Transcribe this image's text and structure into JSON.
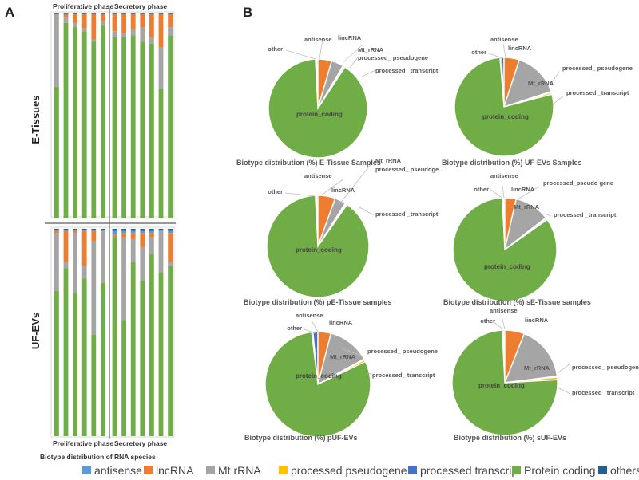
{
  "panel_a": {
    "letter": "A"
  },
  "panel_b": {
    "letter": "B"
  },
  "chart_data": [
    {
      "type": "bar",
      "stacked": true,
      "title": "Biotype distribution of RNA species",
      "row_labels": [
        "E-Tissues",
        "UF-EVs"
      ],
      "phase_labels": {
        "top": [
          "Proliferative phase",
          "Secretory phase"
        ],
        "bottom": [
          "Proliferative phase",
          "Secretory phase"
        ]
      },
      "ylim": [
        0,
        100
      ],
      "series_order": [
        "Protein coding",
        "Mt rRNA",
        "lncRNA",
        "processed pseudogene",
        "processed transcrip",
        "antisense",
        "others"
      ],
      "panels": [
        {
          "name": "E-Tissues",
          "bars": [
            {
              "phase": "Proliferative phase",
              "values": [
                64,
                35,
                0.5,
                0,
                0,
                0.2,
                0.3
              ]
            },
            {
              "phase": "Proliferative phase",
              "values": [
                95,
                3,
                1.5,
                0,
                0,
                0.2,
                0.3
              ]
            },
            {
              "phase": "Proliferative phase",
              "values": [
                93,
                2,
                4.5,
                0,
                0,
                0.2,
                0.3
              ]
            },
            {
              "phase": "Proliferative phase",
              "values": [
                91,
                1.5,
                7,
                0,
                0,
                0.2,
                0.3
              ]
            },
            {
              "phase": "Proliferative phase",
              "values": [
                86,
                1,
                12.5,
                0,
                0,
                0.2,
                0.3
              ]
            },
            {
              "phase": "Proliferative phase",
              "values": [
                94,
                2,
                3.5,
                0,
                0,
                0.2,
                0.3
              ]
            },
            {
              "phase": "Secretory phase",
              "values": [
                88,
                3,
                8.5,
                0,
                0,
                0.2,
                0.3
              ]
            },
            {
              "phase": "Secretory phase",
              "values": [
                88,
                2,
                9.5,
                0,
                0,
                0.2,
                0.3
              ]
            },
            {
              "phase": "Secretory phase",
              "values": [
                89,
                3,
                7.5,
                0,
                0,
                0.2,
                0.3
              ]
            },
            {
              "phase": "Secretory phase",
              "values": [
                86,
                7,
                6.5,
                0,
                0,
                0.2,
                0.3
              ]
            },
            {
              "phase": "Secretory phase",
              "values": [
                85,
                3,
                11.5,
                0,
                0,
                0.2,
                0.3
              ]
            },
            {
              "phase": "Secretory phase",
              "values": [
                63,
                20,
                16.5,
                0,
                0,
                0.2,
                0.3
              ]
            },
            {
              "phase": "Secretory phase",
              "values": [
                89,
                4,
                6.5,
                0,
                0,
                0.2,
                0.3
              ]
            }
          ]
        },
        {
          "name": "UF-EVs",
          "bars": [
            {
              "phase": "Proliferative phase",
              "values": [
                70,
                28,
                1,
                0,
                0,
                0.5,
                0.5
              ]
            },
            {
              "phase": "Proliferative phase",
              "values": [
                81,
                3,
                15,
                0,
                0,
                0.5,
                0.5
              ]
            },
            {
              "phase": "Proliferative phase",
              "values": [
                69,
                29,
                1,
                0,
                0,
                0.5,
                0.5
              ]
            },
            {
              "phase": "Proliferative phase",
              "values": [
                76,
                6,
                17,
                0,
                0,
                0.5,
                0.5
              ]
            },
            {
              "phase": "Proliferative phase",
              "values": [
                49,
                45,
                5,
                0,
                0,
                0.5,
                0.5
              ]
            },
            {
              "phase": "Proliferative phase",
              "values": [
                74,
                25,
                0,
                0,
                0,
                0.5,
                0.5
              ]
            },
            {
              "phase": "Secretory phase",
              "values": [
                96,
                0,
                1,
                0,
                0,
                2,
                1
              ]
            },
            {
              "phase": "Secretory phase",
              "values": [
                56,
                40,
                2,
                0,
                0,
                1,
                1
              ]
            },
            {
              "phase": "Secretory phase",
              "values": [
                84,
                11,
                3,
                0,
                0,
                1,
                1
              ]
            },
            {
              "phase": "Secretory phase",
              "values": [
                75,
                16,
                7,
                0,
                0,
                1,
                1
              ]
            },
            {
              "phase": "Secretory phase",
              "values": [
                88,
                8,
                2,
                0,
                0,
                1,
                1
              ]
            },
            {
              "phase": "Secretory phase",
              "values": [
                79,
                20,
                0,
                0,
                0,
                0.5,
                0.5
              ]
            },
            {
              "phase": "Secretory phase",
              "values": [
                82,
                2,
                14,
                0,
                0,
                1,
                1
              ]
            }
          ]
        }
      ]
    },
    {
      "type": "pie",
      "title": "Biotype distribution (%)  E-Tissue Samples",
      "slices": [
        {
          "label": "other",
          "value": 0.4
        },
        {
          "label": "antisense",
          "value": 0.4
        },
        {
          "label": "lincRNA",
          "value": 4.5
        },
        {
          "label": "Mt_rRNA",
          "value": 4
        },
        {
          "label": "processed_ pseudogene",
          "value": 0.3
        },
        {
          "label": "processed_ transcript",
          "value": 0.4
        },
        {
          "label": "protein_coding",
          "value": 90
        }
      ]
    },
    {
      "type": "pie",
      "title": "Biotype distribution (%)  UF-EVs Samples",
      "slices": [
        {
          "label": "other",
          "value": 0.5
        },
        {
          "label": "antisense",
          "value": 0.8
        },
        {
          "label": "lincRNA",
          "value": 5
        },
        {
          "label": "Mt_rRNA",
          "value": 15
        },
        {
          "label": "processed_ pseudogene",
          "value": 0.3
        },
        {
          "label": "processed _transcript",
          "value": 0.6
        },
        {
          "label": "protein_coding",
          "value": 77.8
        }
      ]
    },
    {
      "type": "pie",
      "title": "Biotype distribution (%)  pE-Tissue samples",
      "slices": [
        {
          "label": "other",
          "value": 0.4
        },
        {
          "label": "antisense",
          "value": 0.4
        },
        {
          "label": "lincRNA",
          "value": 5.5
        },
        {
          "label": "Mt_rRNA",
          "value": 3.5
        },
        {
          "label": "processed_ pseudoge...",
          "value": 0.3
        },
        {
          "label": "processed _transcript",
          "value": 0.4
        },
        {
          "label": "protein_coding",
          "value": 89.5
        }
      ]
    },
    {
      "type": "pie",
      "title": "Biotype distribution (%)  sE-Tissue samples",
      "slices": [
        {
          "label": "other",
          "value": 0.4
        },
        {
          "label": "antisense",
          "value": 0.4
        },
        {
          "label": "lincRNA",
          "value": 3.5
        },
        {
          "label": "Mt_rRNA",
          "value": 11
        },
        {
          "label": "processed_pseudo gene",
          "value": 0.3
        },
        {
          "label": "processed _transcript",
          "value": 0.4
        },
        {
          "label": "protein_coding",
          "value": 84
        }
      ]
    },
    {
      "type": "pie",
      "title": "Biotype distribution (%)  pUF-EVs",
      "slices": [
        {
          "label": "other",
          "value": 0.4
        },
        {
          "label": "antisense",
          "value": 1.5
        },
        {
          "label": "lincRNA",
          "value": 4
        },
        {
          "label": "Mt_rRNA",
          "value": 13
        },
        {
          "label": "processed_ pseudogene",
          "value": 0.3
        },
        {
          "label": "processed_ transcript",
          "value": 0.6
        },
        {
          "label": "protein_coding",
          "value": 80.2
        }
      ]
    },
    {
      "type": "pie",
      "title": "Biotype distribution (%)  sUF-EVs",
      "slices": [
        {
          "label": "other",
          "value": 0.4
        },
        {
          "label": "antisense",
          "value": 0.4
        },
        {
          "label": "lincRNA",
          "value": 6
        },
        {
          "label": "Mt_rRNA",
          "value": 17
        },
        {
          "label": "processed_ pseudogene",
          "value": 0.3
        },
        {
          "label": "processed _transcript",
          "value": 0.8
        },
        {
          "label": "protein_coding",
          "value": 75.1
        }
      ]
    }
  ],
  "legend": [
    {
      "label": "antisense",
      "color": "#5b9bd5"
    },
    {
      "label": "lncRNA",
      "color": "#ed7d31"
    },
    {
      "label": "Mt rRNA",
      "color": "#a5a5a5"
    },
    {
      "label": "processed pseudogene",
      "color": "#ffc000"
    },
    {
      "label": "processed transcrip",
      "color": "#4472c4"
    },
    {
      "label": "Protein coding",
      "color": "#70ad47"
    },
    {
      "label": "others",
      "color": "#255e91"
    }
  ],
  "series_colors": {
    "Protein coding": "#70ad47",
    "Mt rRNA": "#a5a5a5",
    "lncRNA": "#ed7d31",
    "processed pseudogene": "#ffc000",
    "processed transcrip": "#4472c4",
    "antisense": "#5b9bd5",
    "others": "#255e91"
  },
  "pie_colors": {
    "other": "#255e91",
    "antisense": "#4472c4",
    "lincRNA": "#ed7d31",
    "Mt_rRNA": "#a5a5a5",
    "pseudogene": "#ffc000",
    "transcript": "#ffc000",
    "protein_coding": "#70ad47"
  }
}
